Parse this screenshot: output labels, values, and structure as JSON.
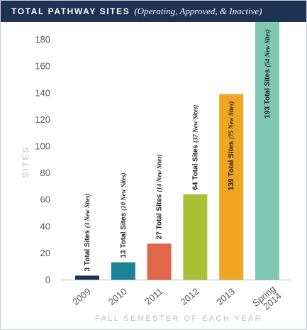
{
  "header": {
    "title": "TOTAL PATHWAY SITES",
    "subtitle": "(Operating, Approved, & Inactive)"
  },
  "chart_data": {
    "type": "bar",
    "title": "TOTAL PATHWAY SITES",
    "subtitle": "(Operating, Approved, & Inactive)",
    "ylabel": "SITES",
    "xlabel": "FALL SEMESTER OF EACH YEAR",
    "ylim": [
      0,
      190
    ],
    "yticks": [
      0,
      20,
      40,
      60,
      80,
      100,
      120,
      140,
      160,
      180
    ],
    "grid": false,
    "categories": [
      [
        "2009"
      ],
      [
        "2010"
      ],
      [
        "2011"
      ],
      [
        "2012"
      ],
      [
        "2013"
      ],
      [
        "Spring",
        "2014"
      ]
    ],
    "values": [
      3,
      13,
      27,
      64,
      139,
      193
    ],
    "colors": [
      "#1d3254",
      "#1b8294",
      "#e0674a",
      "#a9bf36",
      "#f0a523",
      "#7ec7b0"
    ],
    "labels": [
      {
        "main": "3 Total Sites",
        "note": "(3 New Sites)"
      },
      {
        "main": "13 Total Sites",
        "note": "(10 New Sites)"
      },
      {
        "main": "27 Total Sites",
        "note": "(14 New Sites)"
      },
      {
        "main": "64 Total Sites",
        "note": "(37 New Sites)"
      },
      {
        "main": "139 Total Sites",
        "note": "(75 New Sites)"
      },
      {
        "main": "193 Total Sites",
        "note": "(54 New Sites)"
      }
    ]
  }
}
